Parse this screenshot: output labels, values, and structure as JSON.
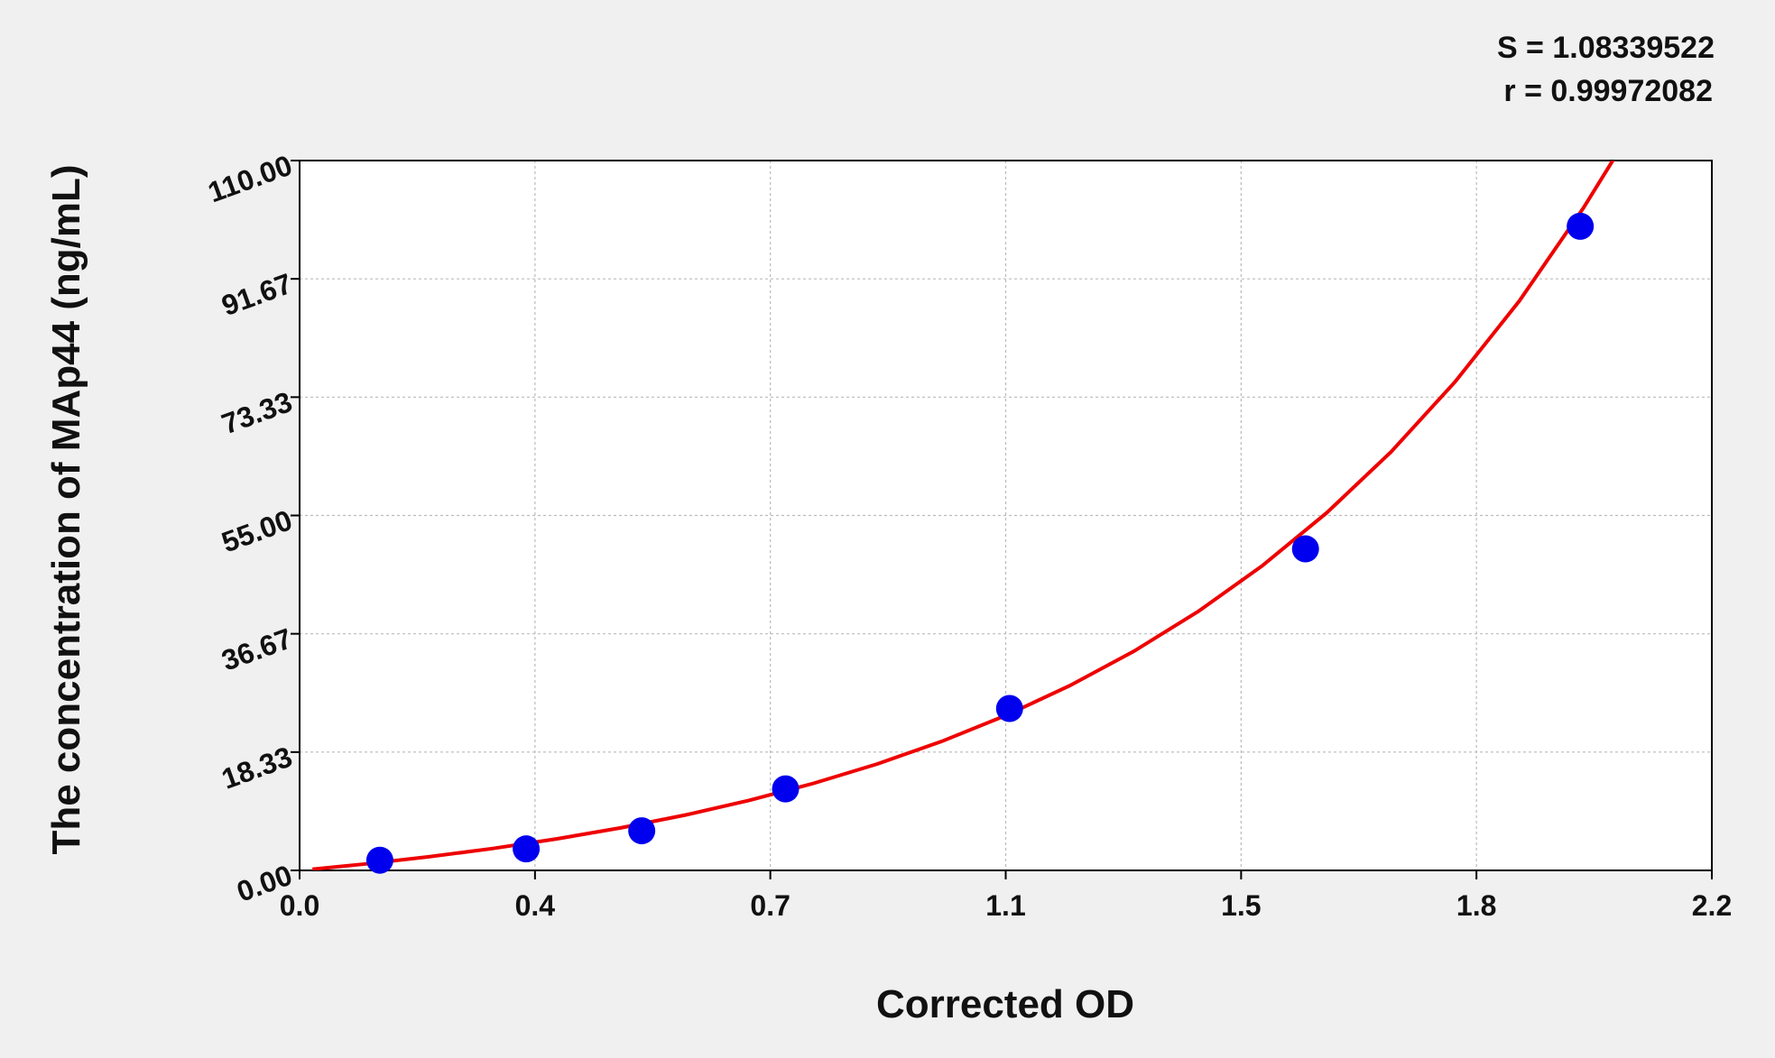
{
  "chart_data": {
    "type": "scatter",
    "x_label": "Corrected OD",
    "y_label": "The concentration of MAp44 (ng/mL)",
    "annotations": [
      "S = 1.08339522",
      "r = 0.99972082"
    ],
    "xlim": [
      0,
      2.2
    ],
    "xticks": [
      {
        "value": 0,
        "label": "0.0"
      },
      {
        "value": 0.3667,
        "label": "0.4"
      },
      {
        "value": 0.7333,
        "label": "0.7"
      },
      {
        "value": 1.1,
        "label": "1.1"
      },
      {
        "value": 1.4667,
        "label": "1.5"
      },
      {
        "value": 1.8333,
        "label": "1.8"
      },
      {
        "value": 2.2,
        "label": "2.2"
      }
    ],
    "ylim": [
      0,
      110
    ],
    "yticks": [
      {
        "value": 0,
        "label": "0.00"
      },
      {
        "value": 18.3333,
        "label": "18.33"
      },
      {
        "value": 36.6667,
        "label": "36.67"
      },
      {
        "value": 55,
        "label": "55.00"
      },
      {
        "value": 73.3333,
        "label": "73.33"
      },
      {
        "value": 91.6667,
        "label": "91.67"
      },
      {
        "value": 110,
        "label": "110.00"
      }
    ],
    "grid": true,
    "points": {
      "color": "#0000ee",
      "x": [
        0.125,
        0.353,
        0.533,
        0.757,
        1.106,
        1.567,
        1.995
      ],
      "y": [
        1.58,
        3.33,
        6.14,
        12.63,
        25.09,
        49.82,
        99.82
      ]
    },
    "fit": {
      "color": "#ee0000",
      "x": [
        0.02,
        0.1,
        0.2,
        0.3,
        0.4,
        0.5,
        0.6,
        0.7,
        0.8,
        0.9,
        1.0,
        1.1,
        1.2,
        1.3,
        1.4,
        1.5,
        1.6,
        1.7,
        1.8,
        1.9,
        2.0,
        2.05
      ],
      "y": [
        0.18,
        0.97,
        2.09,
        3.38,
        4.87,
        6.59,
        8.56,
        10.84,
        13.47,
        16.49,
        19.98,
        24.0,
        28.64,
        33.98,
        40.14,
        47.23,
        55.41,
        64.83,
        75.71,
        88.23,
        102.66,
        110.69
      ]
    }
  }
}
